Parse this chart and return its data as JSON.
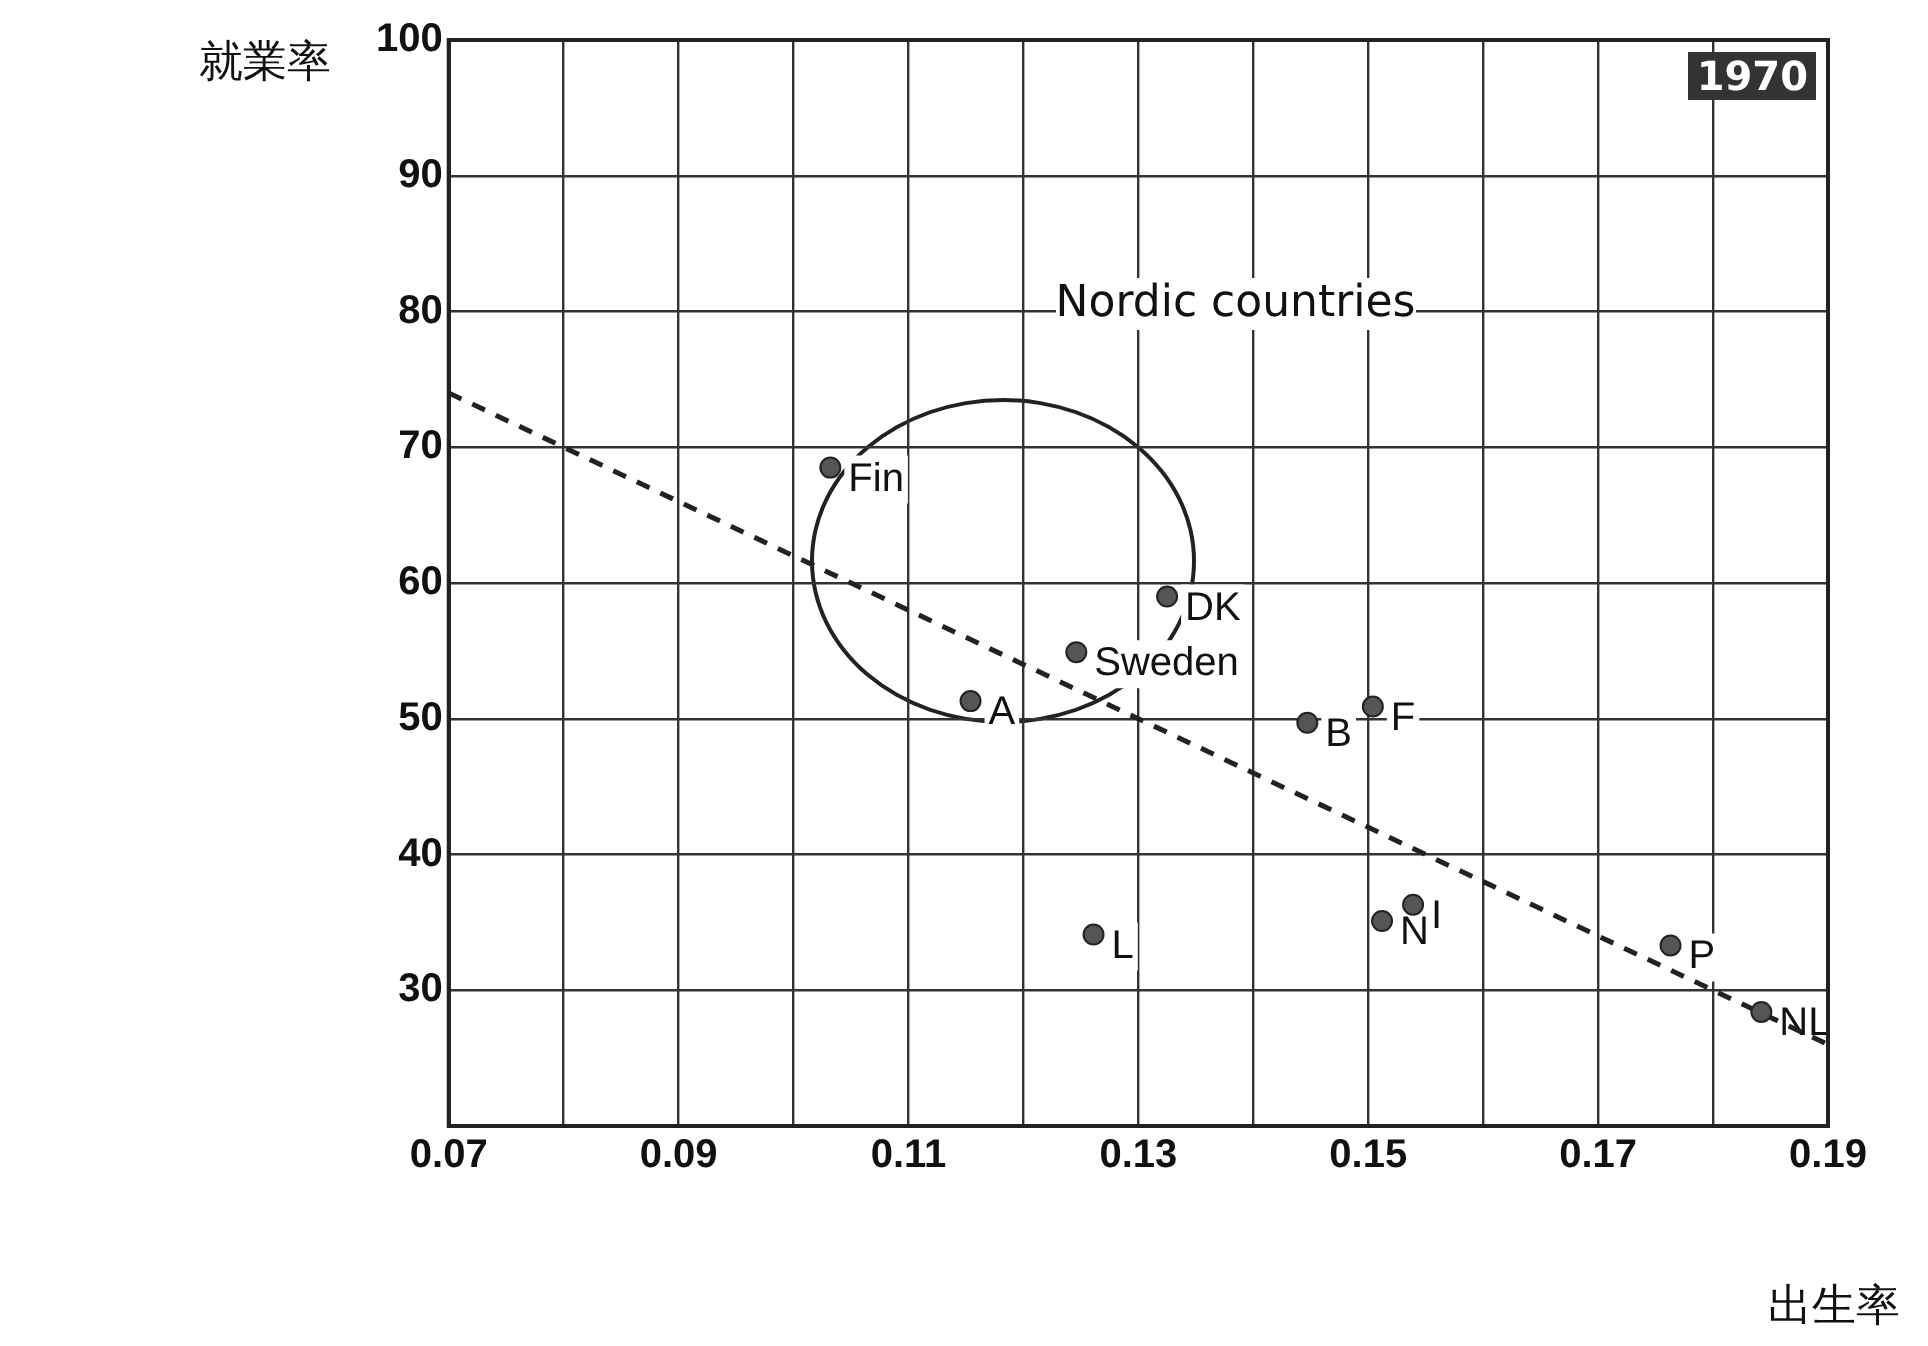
{
  "chart_data": {
    "type": "scatter",
    "xlabel": "出生率",
    "ylabel": "就業率",
    "annotations": [
      "1970",
      "Nordic countries"
    ],
    "xlim": [
      0.07,
      0.19
    ],
    "ylim": [
      20,
      100
    ],
    "xticks": [
      0.07,
      {
        "value": 0.08,
        "label": null
      },
      0.09,
      {
        "value": 0.1,
        "label": null
      },
      0.11,
      {
        "value": 0.12,
        "label": null
      },
      0.13,
      {
        "value": 0.14,
        "label": null
      },
      0.15,
      {
        "value": 0.16,
        "label": null
      },
      0.17,
      {
        "value": 0.18,
        "label": null
      },
      0.19
    ],
    "yticks": [
      30,
      40,
      50,
      60,
      70,
      80,
      90,
      100
    ],
    "grid": true,
    "legend": false,
    "marker": "circle",
    "series": [
      {
        "name": "Fin",
        "color": "#555555",
        "x": [
          0.1032
        ],
        "values": [
          68.5
        ]
      },
      {
        "name": "DK",
        "color": "#555555",
        "x": [
          0.1325
        ],
        "values": [
          59
        ]
      },
      {
        "name": "Sweden",
        "color": "#555555",
        "x": [
          0.1246
        ],
        "values": [
          54.9
        ]
      },
      {
        "name": "A",
        "color": "#555555",
        "x": [
          0.1154
        ],
        "values": [
          51.3
        ]
      },
      {
        "name": "B",
        "color": "#555555",
        "x": [
          0.1447
        ],
        "values": [
          49.7
        ]
      },
      {
        "name": "F",
        "color": "#555555",
        "x": [
          0.1504
        ],
        "values": [
          50.9
        ]
      },
      {
        "name": "I",
        "color": "#555555",
        "x": [
          0.1539
        ],
        "values": [
          36.3
        ]
      },
      {
        "name": "N",
        "color": "#555555",
        "x": [
          0.1512
        ],
        "values": [
          35.1
        ]
      },
      {
        "name": "L",
        "color": "#555555",
        "x": [
          0.1261
        ],
        "values": [
          34.1
        ]
      },
      {
        "name": "P",
        "color": "#555555",
        "x": [
          0.1763
        ],
        "values": [
          33.3
        ]
      },
      {
        "name": "NL",
        "color": "#555555",
        "x": [
          0.1842
        ],
        "values": [
          28.4
        ]
      },
      {
        "type": "line",
        "marker": "none",
        "line_style": "dashed",
        "color": "#222222",
        "x": [
          0.07,
          0.19
        ],
        "values": [
          74,
          26
        ]
      }
    ]
  }
}
